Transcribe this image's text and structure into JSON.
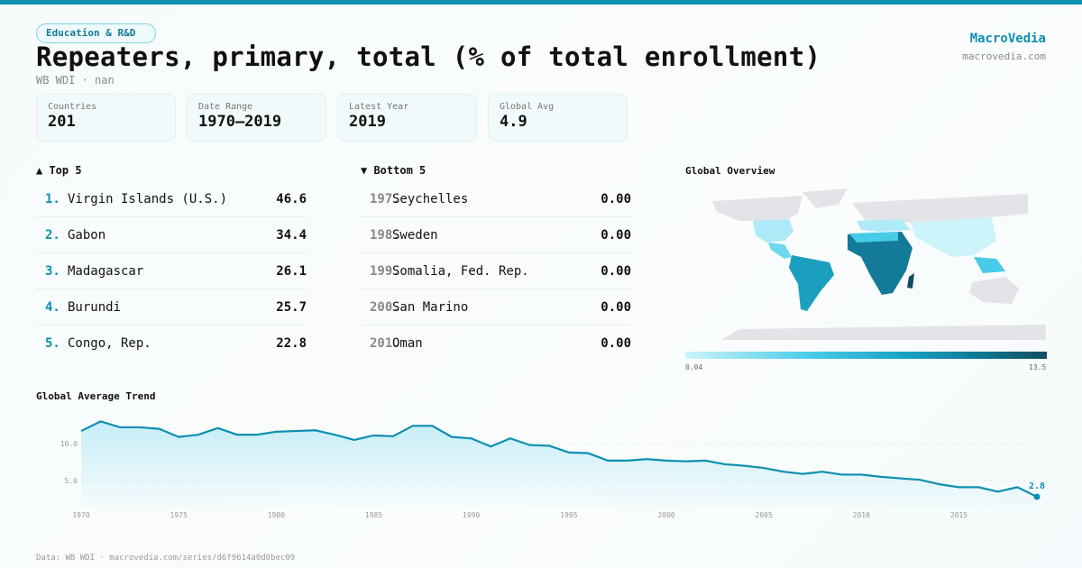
{
  "header": {
    "category": "Education & R&D",
    "title": "Repeaters, primary, total (% of total enrollment)",
    "subtitle": "WB WDI · nan",
    "brand": "MacroVedia",
    "brand_url": "macrovedia.com"
  },
  "stats": [
    {
      "label": "Countries",
      "value": "201"
    },
    {
      "label": "Date Range",
      "value": "1970–2019"
    },
    {
      "label": "Latest Year",
      "value": "2019"
    },
    {
      "label": "Global Avg",
      "value": "4.9"
    }
  ],
  "top5": {
    "title": "▲ Top 5",
    "items": [
      {
        "rank": "1.",
        "name": "Virgin Islands (U.S.)",
        "value": "46.6"
      },
      {
        "rank": "2.",
        "name": "Gabon",
        "value": "34.4"
      },
      {
        "rank": "3.",
        "name": "Madagascar",
        "value": "26.1"
      },
      {
        "rank": "4.",
        "name": "Burundi",
        "value": "25.7"
      },
      {
        "rank": "5.",
        "name": "Congo, Rep.",
        "value": "22.8"
      }
    ]
  },
  "bottom5": {
    "title": "▼ Bottom 5",
    "items": [
      {
        "rank": "197.",
        "name": "Seychelles",
        "value": "0.00"
      },
      {
        "rank": "198.",
        "name": "Sweden",
        "value": "0.00"
      },
      {
        "rank": "199.",
        "name": "Somalia, Fed. Rep.",
        "value": "0.00"
      },
      {
        "rank": "200.",
        "name": "San Marino",
        "value": "0.00"
      },
      {
        "rank": "201.",
        "name": "Oman",
        "value": "0.00"
      }
    ]
  },
  "map": {
    "title": "Global Overview",
    "legend_min": "0.04",
    "legend_max": "13.5",
    "colors": {
      "low": "#cdf3fb",
      "high": "#134d62",
      "nodata": "#e4e4e8"
    }
  },
  "footer": "Data: WB WDI · macrovedia.com/series/d6f9614a0d0bec09",
  "chart_data": {
    "type": "area",
    "title": "Global Average Trend",
    "xlabel": "",
    "ylabel": "",
    "x": [
      1970,
      1971,
      1972,
      1973,
      1974,
      1975,
      1976,
      1977,
      1978,
      1979,
      1980,
      1981,
      1982,
      1983,
      1984,
      1985,
      1986,
      1987,
      1988,
      1989,
      1990,
      1991,
      1992,
      1993,
      1994,
      1995,
      1996,
      1997,
      1998,
      1999,
      2000,
      2001,
      2002,
      2003,
      2004,
      2005,
      2006,
      2007,
      2008,
      2009,
      2010,
      2011,
      2012,
      2013,
      2014,
      2015,
      2016,
      2017,
      2018,
      2019
    ],
    "values": [
      11.7,
      13.0,
      12.2,
      12.2,
      12.0,
      10.9,
      11.2,
      12.1,
      11.2,
      11.2,
      11.6,
      11.7,
      11.8,
      11.2,
      10.5,
      11.1,
      11.0,
      12.4,
      12.4,
      10.9,
      10.7,
      9.6,
      10.7,
      9.8,
      9.7,
      8.8,
      8.7,
      7.7,
      7.7,
      7.9,
      7.7,
      7.6,
      7.7,
      7.2,
      7.0,
      6.7,
      6.2,
      5.9,
      6.2,
      5.8,
      5.8,
      5.5,
      5.3,
      5.1,
      4.5,
      4.1,
      4.1,
      3.5,
      4.1,
      2.8
    ],
    "x_ticks": [
      "1970",
      "1975",
      "1980",
      "1985",
      "1990",
      "1995",
      "2000",
      "2005",
      "2010",
      "2015"
    ],
    "y_ticks": [
      "5.0",
      "10.0"
    ],
    "last_label": "2.8",
    "xlim": [
      1970,
      2019
    ],
    "ylim": [
      0,
      13.5
    ],
    "grid": true,
    "color": "#0e8fb0"
  }
}
